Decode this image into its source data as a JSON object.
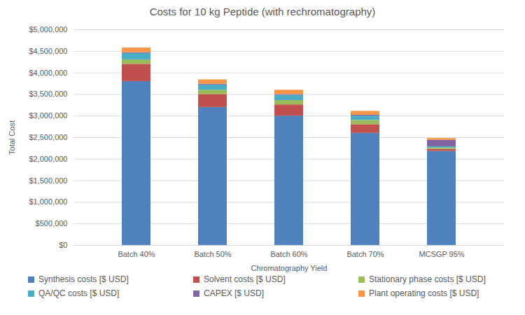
{
  "chart_data": {
    "type": "bar",
    "stacked": true,
    "title": "Costs for 10 kg Peptide (with rechromatography)",
    "x_label": "Chromatography Yield",
    "y_label": "Total Cost",
    "categories": [
      "Batch 40%",
      "Batch 50%",
      "Batch 60%",
      "Batch 70%",
      "MCSGP 95%"
    ],
    "series": [
      {
        "name": "Synthesis costs [$ USD]",
        "color": "#4f81bd",
        "values": [
          3800000,
          3200000,
          3000000,
          2600000,
          2180000
        ]
      },
      {
        "name": "Solvent costs  [$ USD]",
        "color": "#c0504d",
        "values": [
          400000,
          300000,
          260000,
          200000,
          50000
        ]
      },
      {
        "name": "Stationary phase costs [$ USD]",
        "color": "#9bbb59",
        "values": [
          100000,
          100000,
          100000,
          100000,
          30000
        ]
      },
      {
        "name": "QA/QC costs  [$ USD]",
        "color": "#4bacc6",
        "values": [
          150000,
          120000,
          120000,
          100000,
          30000
        ]
      },
      {
        "name": "CAPEX [$ USD]",
        "color": "#8064a2",
        "values": [
          20000,
          20000,
          20000,
          20000,
          150000
        ]
      },
      {
        "name": "Plant operating costs [$ USD]",
        "color": "#f79646",
        "values": [
          110000,
          100000,
          100000,
          90000,
          40000
        ]
      }
    ],
    "ylim": [
      0,
      5000000
    ],
    "yticks": [
      {
        "value": 0,
        "label": "$0"
      },
      {
        "value": 500000,
        "label": "$500,000"
      },
      {
        "value": 1000000,
        "label": "$1,000,000"
      },
      {
        "value": 1500000,
        "label": "$1,500,000"
      },
      {
        "value": 2000000,
        "label": "$2,000,000"
      },
      {
        "value": 2500000,
        "label": "$2,500,000"
      },
      {
        "value": 3000000,
        "label": "$3,000,000"
      },
      {
        "value": 3500000,
        "label": "$3,500,000"
      },
      {
        "value": 4000000,
        "label": "$4,000,000"
      },
      {
        "value": 4500000,
        "label": "$4,500,000"
      },
      {
        "value": 5000000,
        "label": "$5,000,000"
      }
    ],
    "grid": true,
    "legend": "bottom",
    "data_labels": false
  }
}
